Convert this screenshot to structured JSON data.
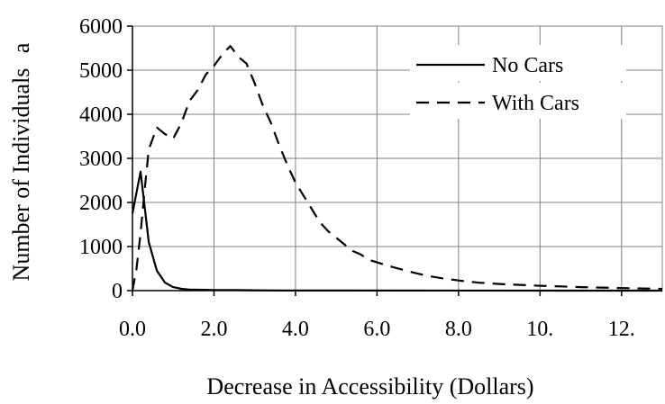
{
  "chart_data": {
    "type": "line",
    "title": "",
    "xlabel": "Decrease in Accessibility (Dollars)",
    "ylabel": "Number of Individuals",
    "ylabel_suffix": "a",
    "xlim": [
      0,
      13
    ],
    "ylim": [
      0,
      6000
    ],
    "grid": true,
    "legend_position": "top-right",
    "x_ticks": [
      0,
      2,
      4,
      6,
      8,
      10,
      12
    ],
    "x_tick_labels": [
      "0.0",
      "2.0",
      "4.0",
      "6.0",
      "8.0",
      "10.",
      "12."
    ],
    "y_ticks": [
      0,
      1000,
      2000,
      3000,
      4000,
      5000,
      6000
    ],
    "y_tick_labels": [
      "0",
      "1000",
      "2000",
      "3000",
      "4000",
      "5000",
      "6000"
    ],
    "series": [
      {
        "name": "No Cars",
        "style": "solid",
        "points": [
          [
            0.0,
            1750
          ],
          [
            0.2,
            2700
          ],
          [
            0.4,
            1100
          ],
          [
            0.6,
            450
          ],
          [
            0.8,
            180
          ],
          [
            1.0,
            80
          ],
          [
            1.2,
            40
          ],
          [
            1.4,
            25
          ],
          [
            1.6,
            20
          ],
          [
            2.0,
            15
          ],
          [
            2.5,
            12
          ],
          [
            3.0,
            8
          ],
          [
            3.5,
            5
          ],
          [
            4.0,
            3
          ],
          [
            4.5,
            2
          ],
          [
            13.0,
            0
          ]
        ]
      },
      {
        "name": "With Cars",
        "style": "dashed",
        "points": [
          [
            0.0,
            0
          ],
          [
            0.1,
            500
          ],
          [
            0.2,
            1300
          ],
          [
            0.3,
            2300
          ],
          [
            0.4,
            3200
          ],
          [
            0.6,
            3700
          ],
          [
            0.8,
            3550
          ],
          [
            1.0,
            3450
          ],
          [
            1.2,
            3800
          ],
          [
            1.4,
            4300
          ],
          [
            1.6,
            4550
          ],
          [
            1.8,
            4900
          ],
          [
            2.0,
            5100
          ],
          [
            2.2,
            5350
          ],
          [
            2.4,
            5550
          ],
          [
            2.6,
            5300
          ],
          [
            2.8,
            5150
          ],
          [
            3.0,
            4700
          ],
          [
            3.2,
            4200
          ],
          [
            3.4,
            3800
          ],
          [
            3.6,
            3300
          ],
          [
            3.8,
            2850
          ],
          [
            4.0,
            2450
          ],
          [
            4.2,
            2150
          ],
          [
            4.4,
            1850
          ],
          [
            4.6,
            1550
          ],
          [
            4.8,
            1350
          ],
          [
            5.0,
            1200
          ],
          [
            5.2,
            1050
          ],
          [
            5.4,
            900
          ],
          [
            5.6,
            820
          ],
          [
            5.8,
            700
          ],
          [
            6.0,
            640
          ],
          [
            6.4,
            530
          ],
          [
            6.8,
            430
          ],
          [
            7.2,
            340
          ],
          [
            7.6,
            280
          ],
          [
            8.0,
            230
          ],
          [
            8.5,
            180
          ],
          [
            9.0,
            150
          ],
          [
            9.5,
            130
          ],
          [
            10.0,
            110
          ],
          [
            10.5,
            95
          ],
          [
            11.0,
            80
          ],
          [
            11.5,
            70
          ],
          [
            12.0,
            60
          ],
          [
            12.5,
            50
          ],
          [
            13.0,
            40
          ]
        ]
      }
    ]
  }
}
